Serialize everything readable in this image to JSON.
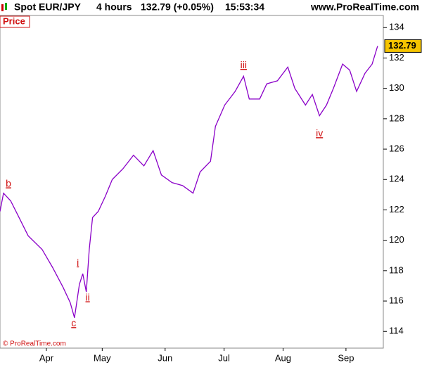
{
  "header": {
    "symbol": "Spot EUR/JPY",
    "period": "4 hours",
    "quote": "132.79 (+0.05%)",
    "time": "15:53:34",
    "site": "www.ProRealTime.com"
  },
  "panel_label": "Price",
  "copyright": "© ProRealTime.com",
  "chart_data": {
    "type": "line",
    "x": [
      0,
      1.8,
      5.4,
      8.9,
      14.3,
      21.4,
      26.8,
      32.1,
      35.7,
      37.9,
      40.4,
      42.1,
      43.9,
      45.4,
      47.1,
      50,
      53.6,
      57.1,
      62.5,
      67.9,
      73.2,
      77.9,
      82.1,
      87.5,
      92.9,
      98.2,
      101.8,
      107.1,
      109.6,
      114.3,
      119.6,
      123.9,
      126.8,
      132.1,
      135.7,
      141.1,
      146.4,
      150,
      155.4,
      158.9,
      162.5,
      166.1,
      169.6,
      174.3,
      177.9,
      181.4,
      185.7,
      189.3,
      192.1
    ],
    "series": [
      {
        "color": "#8a00c8",
        "values": [
          121.9,
          123.1,
          122.6,
          121.7,
          120.3,
          119.4,
          118.2,
          116.9,
          115.9,
          114.9,
          117.1,
          117.8,
          116.6,
          119.4,
          121.5,
          121.9,
          122.9,
          124.0,
          124.7,
          125.6,
          124.9,
          125.9,
          124.3,
          123.8,
          123.6,
          123.1,
          124.5,
          125.2,
          127.5,
          128.9,
          129.8,
          130.8,
          129.3,
          129.3,
          130.3,
          130.5,
          131.4,
          130.0,
          128.9,
          129.6,
          128.2,
          128.9,
          130.0,
          131.6,
          131.2,
          129.8,
          131.0,
          131.6,
          132.79
        ]
      }
    ],
    "xlim": [
      0,
      195
    ],
    "xticks": [
      {
        "value": 23.6,
        "label": "Apr"
      },
      {
        "value": 52,
        "label": "May"
      },
      {
        "value": 84,
        "label": "Jun"
      },
      {
        "value": 114,
        "label": "Jul"
      },
      {
        "value": 144,
        "label": "Aug"
      },
      {
        "value": 176,
        "label": "Sep"
      }
    ],
    "ylim": [
      112.9,
      134.8
    ],
    "yticks": [
      114,
      116,
      118,
      120,
      122,
      124,
      126,
      128,
      130,
      132,
      134
    ],
    "annotations": [
      {
        "text": "b",
        "x": 4.3,
        "y": 123.7
      },
      {
        "text": "c",
        "x": 37.5,
        "y": 114.5
      },
      {
        "text": "i",
        "x": 39.6,
        "y": 118.5
      },
      {
        "text": "ii",
        "x": 44.6,
        "y": 116.2
      },
      {
        "text": "iii",
        "x": 123.9,
        "y": 131.5
      },
      {
        "text": "iv",
        "x": 162.5,
        "y": 127.0
      }
    ]
  }
}
